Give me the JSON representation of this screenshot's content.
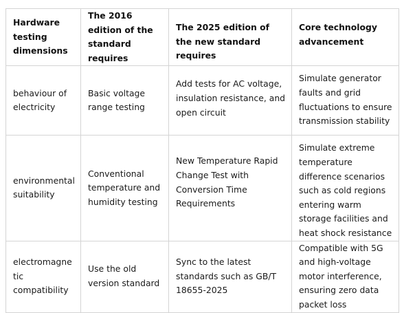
{
  "table": {
    "headers": [
      "Hardware testing dimensions",
      "The 2016 edition of the standard requires",
      "The 2025 edition of the new standard requires",
      "Core technology advancement"
    ],
    "rows": [
      {
        "dimension": "behaviour of electricity",
        "req_2016": "Basic voltage range testing",
        "req_2025": "Add tests for AC voltage, insulation resistance, and open circuit",
        "advancement": "Simulate generator faults and grid fluctuations to ensure transmission stability"
      },
      {
        "dimension": "environmental suitability",
        "req_2016": "Conventional temperature and humidity testing",
        "req_2025": "New Temperature Rapid Change Test with Conversion Time Requirements",
        "advancement": "Simulate extreme temperature difference scenarios such as cold regions entering warm storage facilities and heat shock resistance"
      },
      {
        "dimension": "electromagnetic compatibility",
        "req_2016": "Use the old version standard",
        "req_2025": "Sync to the latest standards such as GB/T 18655-2025",
        "advancement": "Compatible with 5G and high-voltage motor interference, ensuring zero data packet loss"
      }
    ]
  }
}
